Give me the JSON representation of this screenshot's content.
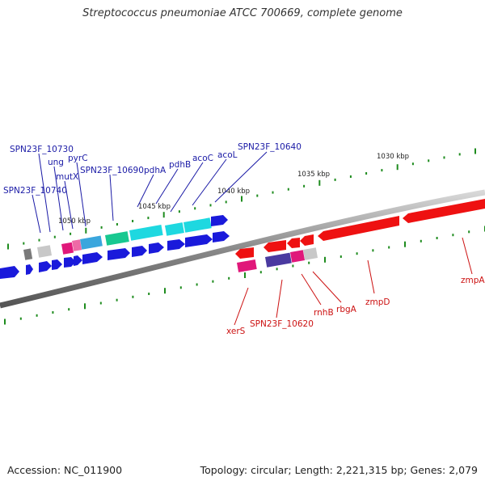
{
  "title": "Streptococcus pneumoniae ATCC 700669, complete genome",
  "footer": {
    "accession": "Accession: NC_011900",
    "stats": "Topology: circular; Length: 2,221,315 bp; Genes: 2,079"
  },
  "colors": {
    "backbone": "#8c8c8c",
    "forward_label": "#1a1aa6",
    "reverse_label": "#cc1111",
    "tick": "#1e8c1e"
  },
  "tick_labels": [
    "1030 kbp",
    "1035 kbp",
    "1040 kbp",
    "1045 kbp",
    "1050 kbp"
  ],
  "forward_labels": [
    "SPN23F_10740",
    "SPN23F_10730",
    "ung",
    "mutX",
    "pyrC",
    "SPN23F_10690",
    "pdhA",
    "pdhB",
    "acoC",
    "acoL",
    "SPN23F_10640"
  ],
  "reverse_labels": [
    "xerS",
    "SPN23F_10620",
    "rnhB",
    "rbgA",
    "zmpD",
    "zmpA"
  ]
}
